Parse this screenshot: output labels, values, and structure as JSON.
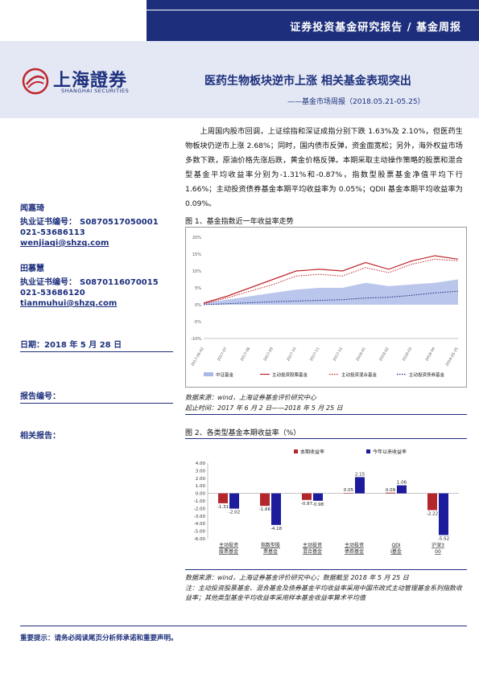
{
  "header": {
    "category": "证券投资基金研究报告 / 基金周报",
    "logo_cn": "上海證券",
    "logo_en": "SHANGHAI SECURITIES",
    "title": "医药生物板块逆市上涨    相关基金表现突出",
    "subtitle": "——基金市场周报（2018.05.21-05.25）"
  },
  "intro": "上周国内股市回调，上证综指和深证成指分别下跌 1.63%及 2.10%，但医药生物板块仍逆市上涨 2.68%；同时，国内债市反弹，资金面宽松；另外，海外权益市场多数下跌，原油价格先涨后跌，黄金价格反弹。本期采取主动操作策略的股票和混合型基金平均收益率分别为-1.31%和-0.87%，指数型股票基金净值平均下行 1.66%；主动投资债券基金本期平均收益率为 0.05%；QDII 基金本期平均收益率为 0.09%。",
  "analysts": [
    {
      "name": "闻嘉琦",
      "cert_label": "执业证书编号：",
      "cert": "S0870517050001",
      "phone": "021-53686113",
      "email": "wenjiaqi@shzq.com"
    },
    {
      "name": "田慕慧",
      "cert_label": "执业证书编号：",
      "cert": "S0870116070015",
      "phone": "021-53686120",
      "email": "tianmuhui@shzq.com"
    }
  ],
  "date": "日期：2018 年 5 月 28 日",
  "report_no": "报告编号：",
  "related": "相关报告：",
  "fig1": {
    "caption": "图 1、基金指数近一年收益率走势",
    "source": "数据来源：wind，上海证券基金评价研究中心",
    "period": "起止时间：2017 年 6 月 2 日——2018 年 5 月 25 日"
  },
  "fig2": {
    "caption": "图 2、各类型基金本期收益率（%）",
    "source": "数据来源：wind，上海证券基金评价研究中心；数据截至 2018 年 5 月 25 日",
    "note": "注：主动投资股票基金、混合基金及债券基金平均收益率采用中国市政式主动管理基金系列指数收益率；其他类型基金平均收益率采用样本基金收益率算术平均值"
  },
  "footer": "重要提示：请务必阅读尾页分析师承诺和重要声明。",
  "chart_data": [
    {
      "type": "area",
      "title": "",
      "yticks": [
        "20%",
        "15%",
        "10%",
        "5%",
        "0%",
        "-5%",
        "-10%"
      ],
      "ylim": [
        -10,
        20
      ],
      "x": [
        "2017-06-02",
        "2017-07",
        "2017-08",
        "2017-09",
        "2017-10",
        "2017-11",
        "2017-12",
        "2018-01",
        "2018-02",
        "2018-03",
        "2018-04",
        "2018-05-25"
      ],
      "series": [
        {
          "name": "中证基金",
          "style": "area",
          "color": "#a9b8e6",
          "values": [
            0.5,
            1.5,
            2.5,
            3.5,
            4.5,
            5.0,
            5.0,
            6.5,
            5.5,
            6.0,
            6.5,
            7.5
          ]
        },
        {
          "name": "主动投资股票基金",
          "style": "solid",
          "color": "#c0262b",
          "values": [
            0.5,
            2.5,
            5.0,
            7.5,
            10.0,
            10.5,
            10.0,
            12.5,
            10.5,
            13.0,
            14.5,
            13.5
          ]
        },
        {
          "name": "主动投资混合基金",
          "style": "dotted",
          "color": "#c0262b",
          "values": [
            0.3,
            2.0,
            4.0,
            6.0,
            8.5,
            9.0,
            8.5,
            11.0,
            9.5,
            12.0,
            13.5,
            13.0
          ]
        },
        {
          "name": "主动投资债券基金",
          "style": "dotted",
          "color": "#1d2f7c",
          "values": [
            0.0,
            0.3,
            0.6,
            0.9,
            1.1,
            1.3,
            1.5,
            2.0,
            2.2,
            2.8,
            3.5,
            4.0
          ]
        }
      ],
      "legend_position": "bottom",
      "grid": false
    },
    {
      "type": "bar",
      "title": "",
      "categories": [
        "主动投资股票基金",
        "指数型股票基金",
        "主动投资混合基金",
        "主动投资债券基金",
        "QDII基金",
        "沪深300"
      ],
      "ylim": [
        -6,
        4
      ],
      "yticks": [
        "4.00",
        "3.00",
        "2.00",
        "1.00",
        "0.00",
        "-1.00",
        "-2.00",
        "-3.00",
        "-4.00",
        "-5.00",
        "-6.00"
      ],
      "series": [
        {
          "name": "本期收益率",
          "color": "#b3262b",
          "values": [
            -1.31,
            -1.66,
            -0.87,
            0.05,
            0.09,
            -2.22
          ]
        },
        {
          "name": "今年以来收益率",
          "color": "#1c1c9c",
          "values": [
            -2.02,
            -4.18,
            -0.98,
            2.15,
            1.06,
            -5.52
          ]
        }
      ],
      "legend_position": "top",
      "grid": false
    }
  ]
}
